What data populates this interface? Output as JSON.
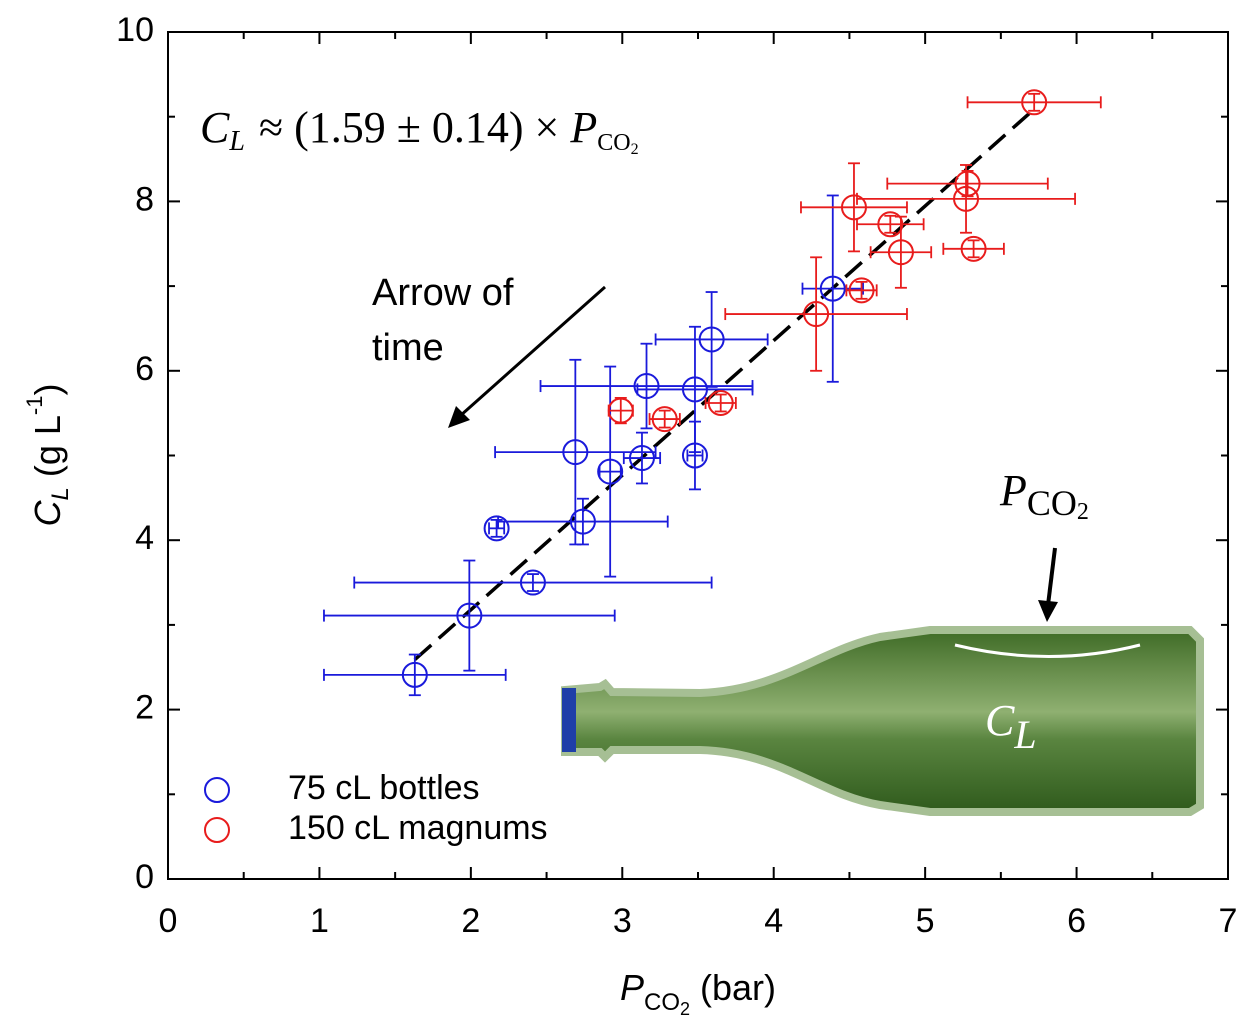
{
  "chart_data": {
    "type": "scatter",
    "xlabel": {
      "main": "P",
      "sub": "CO",
      "subsub": "2",
      "rest": " (bar)"
    },
    "ylabel": {
      "main": "C",
      "sub": "L",
      "rest": " (g L",
      "sup": "-1",
      "end": ")"
    },
    "annotation": {
      "lhs": "C",
      "lhs_sub": "L",
      "rhs": "≈ (1.59 ± 0.14) × ",
      "p": "P",
      "p_sub": "CO",
      "p_subsub": "2"
    },
    "arrow_label": [
      "Arrow of",
      "time"
    ],
    "bottle_labels": {
      "p": "P",
      "p_sub": "CO",
      "p_subsub": "2",
      "c": "C",
      "c_sub": "L"
    },
    "xlim": [
      0,
      7
    ],
    "xticks": [
      0,
      1,
      2,
      3,
      4,
      5,
      6,
      7
    ],
    "xminorticks": [
      0.5,
      1.5,
      2.5,
      3.5,
      4.5,
      5.5,
      6.5
    ],
    "ylim": [
      0,
      10
    ],
    "yticks": [
      0,
      2,
      4,
      6,
      8,
      10
    ],
    "yminorticks": [
      1,
      3,
      5,
      7,
      9
    ],
    "fit_line": {
      "x": [
        1.63,
        5.72
      ],
      "values": [
        2.59,
        9.09
      ],
      "color": "#000000"
    },
    "series": [
      {
        "name": "75 cL bottles",
        "color": "#1a1adb",
        "x": [
          1.63,
          1.99,
          2.41,
          2.17,
          2.74,
          2.69,
          2.92,
          3.13,
          3.16,
          3.48,
          3.59,
          3.48,
          4.39
        ],
        "values": [
          2.41,
          3.11,
          3.5,
          4.14,
          4.22,
          5.04,
          4.81,
          4.97,
          5.82,
          5.78,
          6.37,
          5.0,
          6.97
        ],
        "xerr": [
          0.6,
          0.96,
          1.18,
          0.05,
          0.56,
          0.53,
          0.07,
          0.12,
          0.7,
          0.38,
          0.37,
          0.05,
          0.2
        ],
        "yerr": [
          0.24,
          0.65,
          0.1,
          0.1,
          0.27,
          1.09,
          1.24,
          0.3,
          0.5,
          0.74,
          0.56,
          0.4,
          1.1
        ]
      },
      {
        "name": "150 cL magnums",
        "color": "#e81c1c",
        "x": [
          5.72,
          5.28,
          5.27,
          4.53,
          4.77,
          4.84,
          5.32,
          4.58,
          4.28,
          2.99,
          3.28,
          3.65
        ],
        "values": [
          9.17,
          8.21,
          8.03,
          7.93,
          7.73,
          7.4,
          7.44,
          6.95,
          6.67,
          5.53,
          5.43,
          5.62
        ],
        "xerr": [
          0.44,
          0.53,
          0.72,
          0.35,
          0.22,
          0.2,
          0.2,
          0.1,
          0.6,
          0.08,
          0.1,
          0.1
        ],
        "yerr": [
          0.1,
          0.15,
          0.4,
          0.52,
          0.1,
          0.42,
          0.1,
          0.1,
          0.67,
          0.15,
          0.1,
          0.1
        ]
      }
    ]
  }
}
